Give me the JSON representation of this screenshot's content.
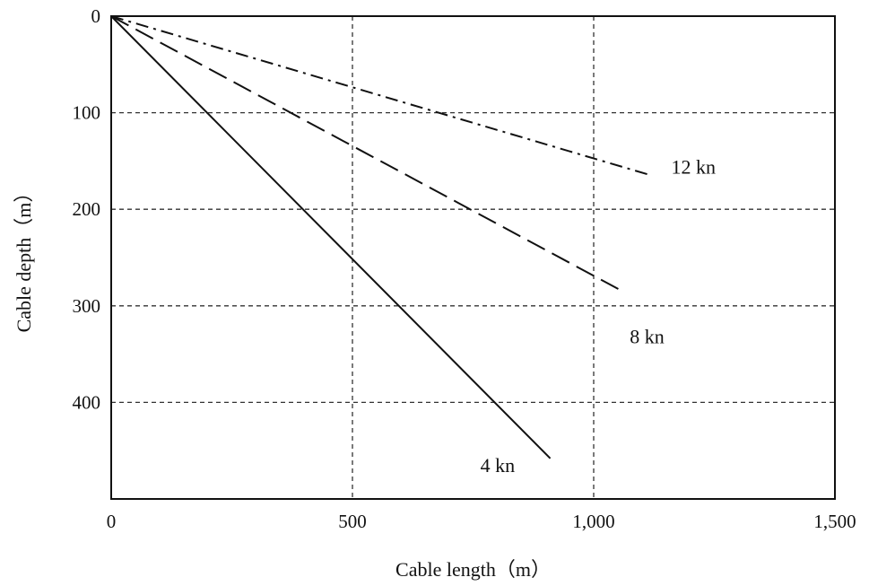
{
  "chart_data": {
    "type": "line",
    "xlabel": "Cable length（m）",
    "ylabel": "Cable depth（m）",
    "xlim": [
      0,
      1500
    ],
    "ylim": [
      0,
      500
    ],
    "y_axis_inverted": true,
    "x_ticks": [
      0,
      500,
      1000,
      1500
    ],
    "x_tick_labels": [
      "0",
      "500",
      "1,000",
      "1,500"
    ],
    "y_ticks": [
      0,
      100,
      200,
      300,
      400
    ],
    "y_tick_labels": [
      "0",
      "100",
      "200",
      "300",
      "400"
    ],
    "grid": true,
    "grid_style": "dashed",
    "series": [
      {
        "name": "4 kn",
        "line_style": "solid",
        "x": [
          0,
          910
        ],
        "y": [
          0,
          458
        ]
      },
      {
        "name": "8 kn",
        "line_style": "dashed",
        "x": [
          0,
          1060
        ],
        "y": [
          0,
          285
        ]
      },
      {
        "name": "12 kn",
        "line_style": "dash-dot",
        "x": [
          0,
          1120
        ],
        "y": [
          0,
          165
        ]
      }
    ]
  }
}
